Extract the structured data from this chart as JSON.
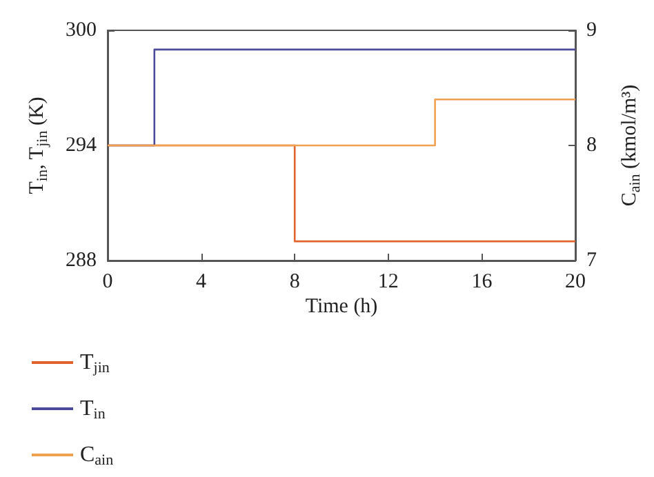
{
  "chart_data": {
    "type": "step",
    "xlabel": "Time (h)",
    "ylabel": "T$_{in}$, T$_{jin}$ (K)",
    "y2label": "C$_{ain}$ (kmol/m³)",
    "xlim": [
      0,
      20
    ],
    "xticks": [
      0,
      4,
      8,
      12,
      16,
      20
    ],
    "ylim": [
      288,
      300
    ],
    "yticks": [
      288,
      294,
      300
    ],
    "y2lim": [
      7,
      9
    ],
    "y2ticks": [
      7,
      8,
      9
    ],
    "grid": false,
    "legend": "bottom left",
    "marker": "none",
    "line_style": "solid",
    "series": [
      {
        "name": "T$_{jin}$",
        "color": "#e0622d",
        "x": [
          0,
          8,
          20
        ],
        "values": [
          294,
          289,
          289
        ]
      },
      {
        "name": "T$_{in}$",
        "color": "#4b4a9a",
        "x": [
          0,
          2,
          20
        ],
        "values": [
          294,
          299,
          299
        ]
      },
      {
        "name": "C$_{ain}$",
        "color": "#f0a04e",
        "x": [
          0,
          14,
          20
        ],
        "values": [
          8,
          8.4,
          8.4
        ],
        "axis": "y2"
      }
    ]
  }
}
